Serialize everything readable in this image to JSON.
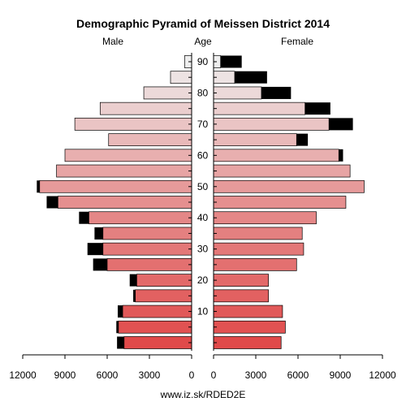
{
  "chart_data": {
    "type": "bar",
    "title": "Demographic Pyramid of Meissen District 2014",
    "left_label": "Male",
    "center_label": "Age",
    "right_label": "Female",
    "footer": "www.iz.sk/RDED2E",
    "age_ticks": [
      "10",
      "20",
      "30",
      "40",
      "50",
      "60",
      "70",
      "80",
      "90"
    ],
    "x_ticks": [
      "12000",
      "9000",
      "6000",
      "3000",
      "0",
      "3000",
      "6000",
      "9000",
      "12000"
    ],
    "xlim": [
      0,
      12000
    ],
    "age_groups": [
      "0-4",
      "5-9",
      "10-14",
      "15-19",
      "20-24",
      "25-29",
      "30-34",
      "35-39",
      "40-44",
      "45-49",
      "50-54",
      "55-59",
      "60-64",
      "65-69",
      "70-74",
      "75-79",
      "80-84",
      "85-89",
      "90+"
    ],
    "male_base": [
      4800,
      5200,
      4900,
      4000,
      3900,
      6000,
      6300,
      6300,
      7300,
      9500,
      10800,
      9600,
      9000,
      5900,
      8300,
      6500,
      3400,
      1500,
      500
    ],
    "male_excess": [
      500,
      150,
      350,
      150,
      500,
      1000,
      1100,
      600,
      700,
      800,
      200,
      0,
      0,
      0,
      0,
      0,
      0,
      0,
      0
    ],
    "female_base": [
      4800,
      5100,
      4900,
      3900,
      3900,
      5900,
      6400,
      6300,
      7300,
      9400,
      10700,
      9700,
      8900,
      5900,
      8200,
      6500,
      3400,
      1500,
      500
    ],
    "female_excess": [
      0,
      0,
      0,
      0,
      0,
      0,
      0,
      0,
      0,
      0,
      0,
      0,
      300,
      800,
      1700,
      1800,
      2100,
      2300,
      1500
    ],
    "colors": {
      "excess": "#000000",
      "young": "#e04a4a",
      "mid": "#e58f8f",
      "old": "#eeeeee"
    }
  }
}
